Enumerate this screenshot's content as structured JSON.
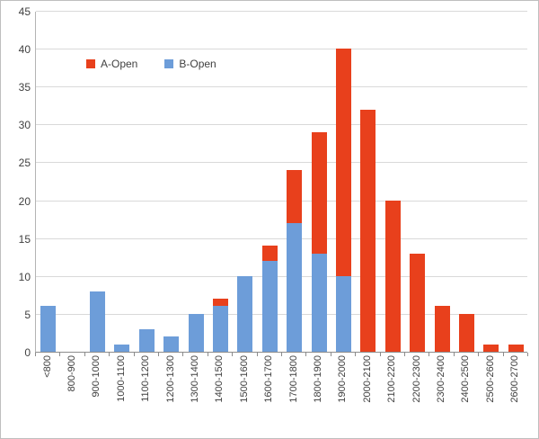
{
  "chart_data": {
    "type": "bar",
    "stacked": true,
    "title": "",
    "xlabel": "",
    "ylabel": "",
    "grid": true,
    "legend_position": "inside-top-left",
    "ylim": [
      0,
      45
    ],
    "yticks": [
      0,
      5,
      10,
      15,
      20,
      25,
      30,
      35,
      40,
      45
    ],
    "categories": [
      "<800",
      "800-900",
      "900-1000",
      "1000-1100",
      "1100-1200",
      "1200-1300",
      "1300-1400",
      "1400-1500",
      "1500-1600",
      "1600-1700",
      "1700-1800",
      "1800-1900",
      "1900-2000",
      "2000-2100",
      "2100-2200",
      "2200-2300",
      "2300-2400",
      "2400-2500",
      "2500-2600",
      "2600-2700"
    ],
    "series": [
      {
        "name": "A-Open",
        "color": "#e8401c",
        "values": [
          0,
          0,
          0,
          0,
          0,
          0,
          0,
          1,
          0,
          2,
          7,
          16,
          30,
          32,
          20,
          13,
          6,
          5,
          1,
          1
        ]
      },
      {
        "name": "B-Open",
        "color": "#6d9dd9",
        "values": [
          6,
          0,
          8,
          1,
          3,
          2,
          5,
          6,
          10,
          12,
          17,
          13,
          10,
          0,
          0,
          0,
          0,
          0,
          0,
          0
        ]
      }
    ]
  },
  "colors": {
    "background": "#ffffff",
    "frame_border": "#bfbfbf",
    "gridline": "#d9d9d9",
    "axis": "#8c8c8c",
    "text": "#404040"
  }
}
